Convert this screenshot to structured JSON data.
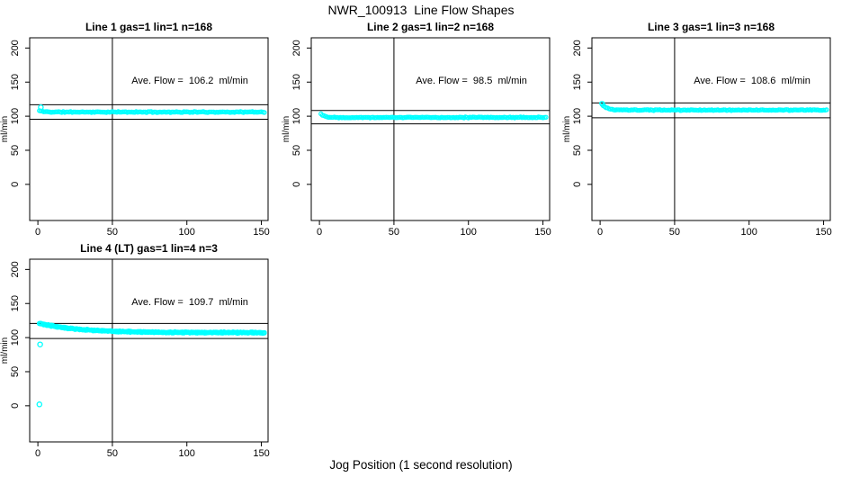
{
  "figure": {
    "title": "NWR_100913  Line Flow Shapes",
    "xlabel": "Jog Position (1 second resolution)"
  },
  "chart_data": {
    "type": "scatter",
    "figure_title": "NWR_100913  Line Flow Shapes",
    "xlabel": "Jog Position (1 second resolution)",
    "ylabel": "ml/min",
    "point_color": "#00FFFF",
    "axis_color": "#000000",
    "xticks": [
      0,
      50,
      100,
      150
    ],
    "yticks": [
      0,
      50,
      100,
      150,
      200
    ],
    "xlim": [
      -5.5,
      154.5
    ],
    "ylim": [
      -53,
      215
    ],
    "vline_x": 50,
    "grid": false,
    "annotation_pos": {
      "x": 102,
      "y": 148
    },
    "panels": [
      {
        "title": "Line 1 gas=1 lin=1 n=168",
        "ave_flow_text": "Ave. Flow =  106.2  ml/min",
        "ave_flow": 106.2,
        "n": 168,
        "ref_line_high": 116.8,
        "ref_line_low": 95.6,
        "series": {
          "x_start": 1,
          "x_end": 152,
          "points": 152,
          "steady": 106.1,
          "start": 108,
          "tau": 3,
          "jitter": 0.9,
          "passes": 1,
          "seed": 11
        },
        "extra_points": [
          {
            "x": 2,
            "y": 113
          }
        ]
      },
      {
        "title": "Line 2 gas=1 lin=2 n=168",
        "ave_flow_text": "Ave. Flow =  98.5  ml/min",
        "ave_flow": 98.5,
        "n": 168,
        "ref_line_high": 108.4,
        "ref_line_low": 88.7,
        "series": {
          "x_start": 1,
          "x_end": 152,
          "points": 152,
          "steady": 98.2,
          "start": 103.5,
          "tau": 2.5,
          "jitter": 0.8,
          "passes": 1,
          "seed": 22
        },
        "extra_points": []
      },
      {
        "title": "Line 3 gas=1 lin=3 n=168",
        "ave_flow_text": "Ave. Flow =  108.6  ml/min",
        "ave_flow": 108.6,
        "n": 168,
        "ref_line_high": 119.5,
        "ref_line_low": 97.7,
        "series": {
          "x_start": 1,
          "x_end": 152,
          "points": 152,
          "steady": 109,
          "start": 118.5,
          "tau": 3,
          "jitter": 0.8,
          "passes": 1,
          "seed": 33
        },
        "extra_points": [
          {
            "x": 1.5,
            "y": 118
          }
        ]
      },
      {
        "title": "Line 4 (LT) gas=1 lin=4 n=3",
        "ave_flow_text": "Ave. Flow =  109.7  ml/min",
        "ave_flow": 109.7,
        "n": 3,
        "ref_line_high": 120.7,
        "ref_line_low": 98.7,
        "series": {
          "x_start": 1,
          "x_end": 152,
          "points": 152,
          "steady": 107.3,
          "start": 121,
          "tau": 26,
          "jitter": 1.2,
          "passes": 3,
          "seed": 44
        },
        "extra_points": [
          {
            "x": 1,
            "y": 2
          },
          {
            "x": 1.5,
            "y": 90
          }
        ]
      }
    ]
  }
}
